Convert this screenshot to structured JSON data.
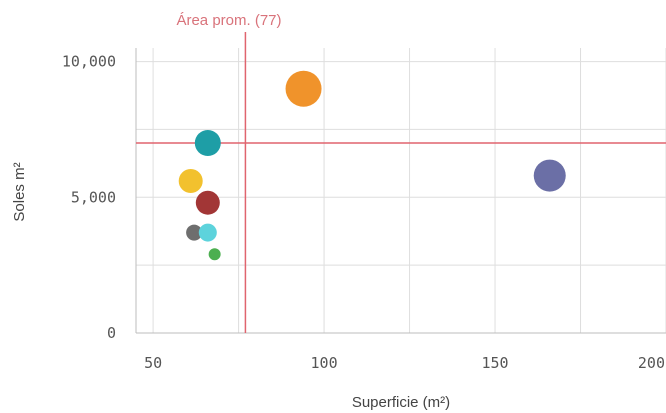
{
  "chart_data": {
    "type": "scatter",
    "xlabel": "Superficie (m²)",
    "ylabel": "Soles m²",
    "xlim": [
      45,
      200
    ],
    "ylim": [
      0,
      10500
    ],
    "x_ticks": [
      {
        "value": 50,
        "label": "50"
      },
      {
        "value": 100,
        "label": "100"
      },
      {
        "value": 150,
        "label": "150"
      },
      {
        "value": 200,
        "label": "200"
      }
    ],
    "y_ticks": [
      {
        "value": 0,
        "label": "0"
      },
      {
        "value": 5000,
        "label": "5,000"
      },
      {
        "value": 10000,
        "label": "10,000"
      }
    ],
    "reference_lines": {
      "vertical": {
        "value": 77,
        "label": "Área prom. (77)",
        "color": "#e0646e"
      },
      "horizontal": {
        "value": 7000,
        "color": "#e0646e"
      }
    },
    "points": [
      {
        "x": 94,
        "y": 9000,
        "size": 18,
        "color": "#f0932b"
      },
      {
        "x": 66,
        "y": 7000,
        "size": 13,
        "color": "#1e9ea6"
      },
      {
        "x": 61,
        "y": 5600,
        "size": 12,
        "color": "#f2c12e"
      },
      {
        "x": 66,
        "y": 4800,
        "size": 12,
        "color": "#a23636"
      },
      {
        "x": 62,
        "y": 3700,
        "size": 8,
        "color": "#6e6e6e"
      },
      {
        "x": 66,
        "y": 3700,
        "size": 9,
        "color": "#5dd3dc"
      },
      {
        "x": 68,
        "y": 2900,
        "size": 6,
        "color": "#4caf50"
      },
      {
        "x": 166,
        "y": 5800,
        "size": 16,
        "color": "#6b6fa6"
      }
    ]
  }
}
